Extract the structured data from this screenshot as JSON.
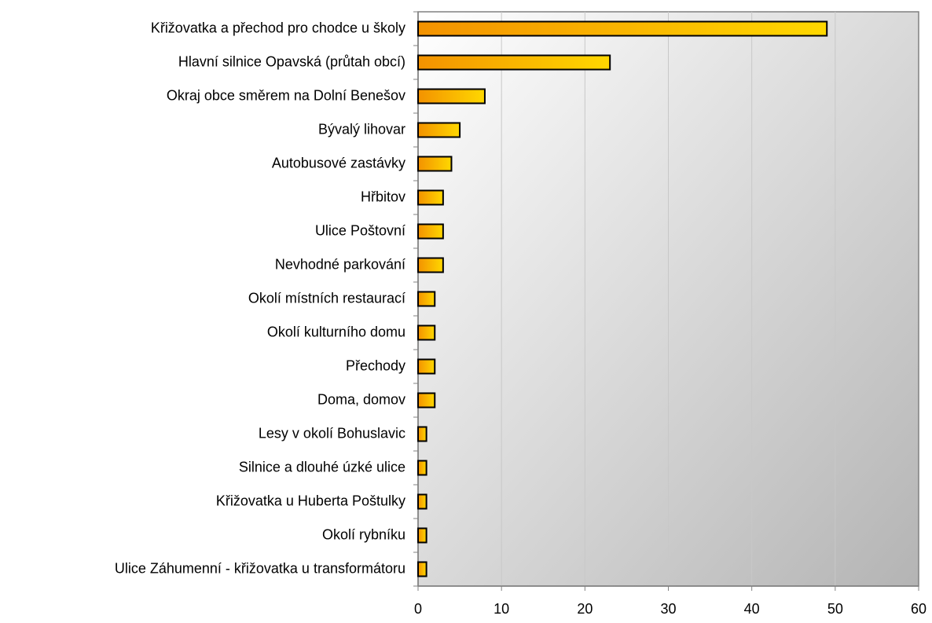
{
  "chart_data": {
    "type": "barh",
    "categories": [
      "Křižovatka a přechod pro chodce u školy",
      "Hlavní silnice Opavská (průtah obcí)",
      "Okraj obce směrem na Dolní Benešov",
      "Bývalý lihovar",
      "Autobusové zastávky",
      "Hřbitov",
      "Ulice Poštovní",
      "Nevhodné parkování",
      "Okolí místních restaurací",
      "Okolí kulturního domu",
      "Přechody",
      "Doma, domov",
      "Lesy v okolí Bohuslavic",
      "Silnice a dlouhé úzké ulice",
      "Křižovatka u Huberta Poštulky",
      "Okolí rybníku",
      "Ulice Záhumenní - křižovatka u transformátoru"
    ],
    "values": [
      49,
      23,
      8,
      5,
      4,
      3,
      3,
      3,
      2,
      2,
      2,
      2,
      1,
      1,
      1,
      1,
      1
    ],
    "bar_gradient": [
      "#f39200",
      "#ffd800"
    ],
    "xlim": [
      0,
      60
    ],
    "xticks": [
      0,
      10,
      20,
      30,
      40,
      50,
      60
    ],
    "grid": true
  }
}
